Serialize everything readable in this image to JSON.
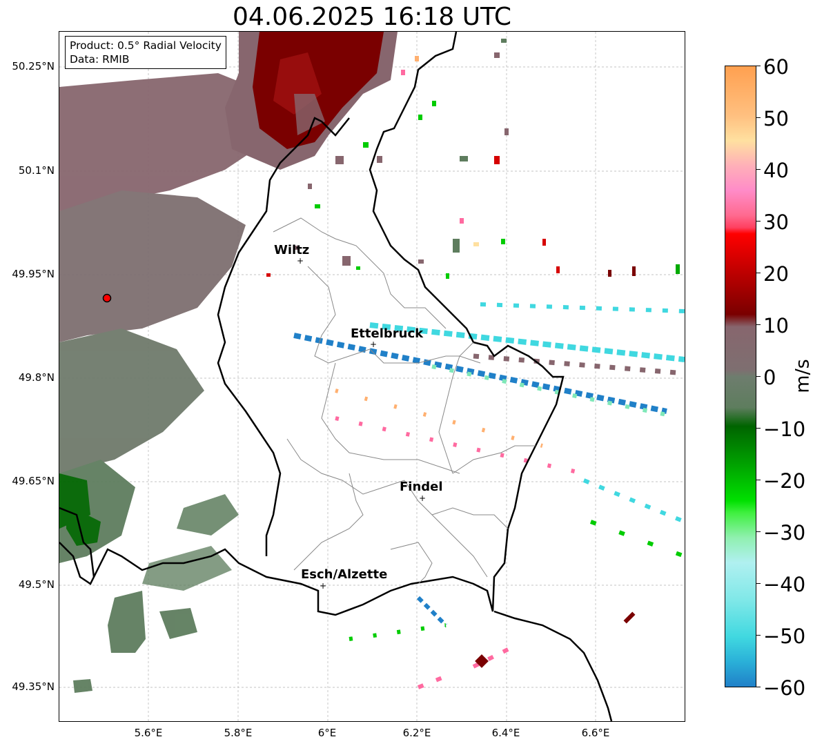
{
  "title": "04.06.2025 16:18 UTC",
  "info": {
    "product": "Product: 0.5° Radial Velocity",
    "data_source": "Data: RMIB"
  },
  "lat_labels": [
    "50.25°N",
    "50.1°N",
    "49.95°N",
    "49.8°N",
    "49.65°N",
    "49.5°N",
    "49.35°N"
  ],
  "lon_labels": [
    "5.6°E",
    "5.8°E",
    "6°E",
    "6.2°E",
    "6.4°E",
    "6.6°E"
  ],
  "cities": [
    {
      "name": "Wiltz"
    },
    {
      "name": "Ettelbruck"
    },
    {
      "name": "Findel"
    },
    {
      "name": "Esch/Alzette"
    }
  ],
  "colorbar": {
    "unit": "m/s",
    "ticks": [
      "60",
      "50",
      "40",
      "30",
      "20",
      "10",
      "0",
      "−10",
      "−20",
      "−30",
      "−40",
      "−50",
      "−60"
    ],
    "range": [
      -60,
      60
    ]
  },
  "colors": {
    "dark_red": "#7a0000",
    "red": "#d60000",
    "gray_red": "#87666e",
    "gray_green": "#5e7d5e",
    "dark_green": "#006400",
    "green": "#00cc00",
    "cyan": "#40d8e0",
    "blue": "#2080c8",
    "pink": "#ff6aa0",
    "orange": "#ffb070"
  }
}
